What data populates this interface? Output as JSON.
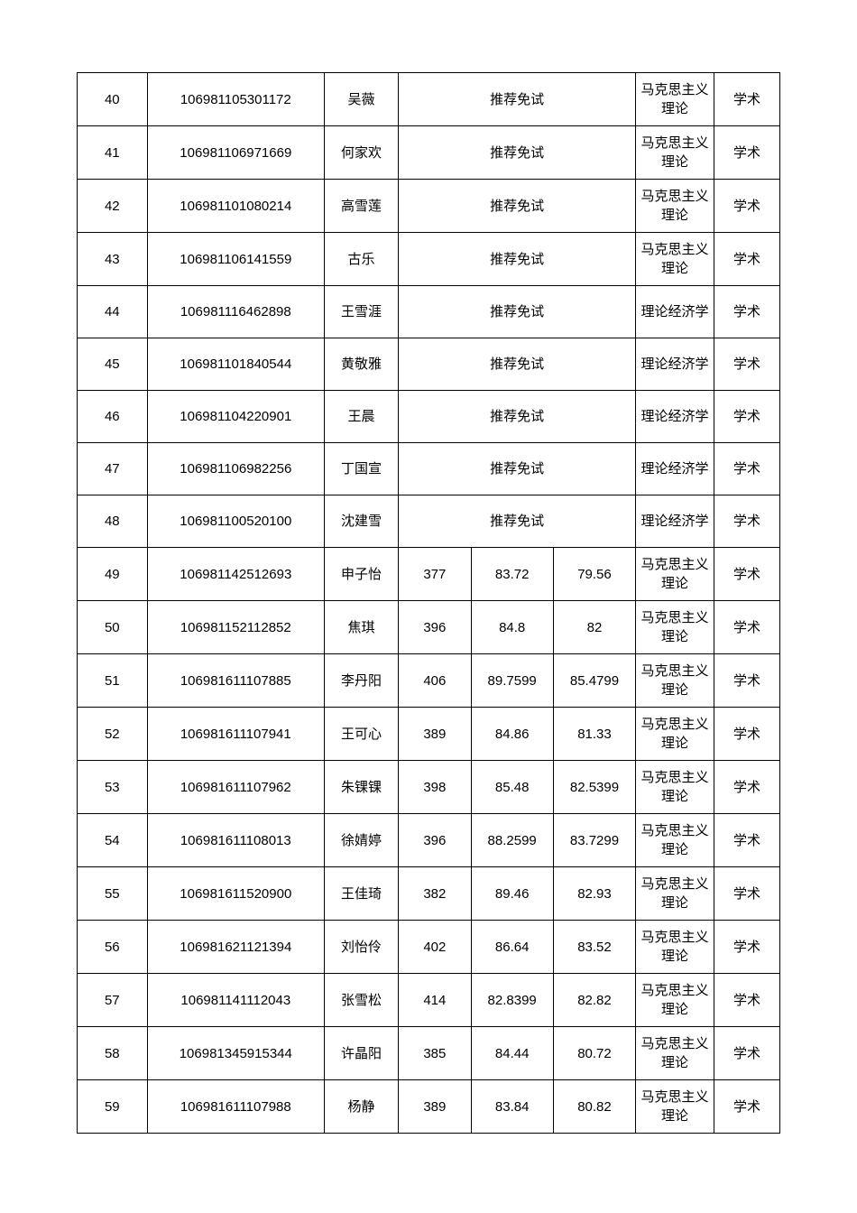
{
  "table": {
    "border_color": "#000000",
    "text_color": "#000000",
    "font_size": 15,
    "rows": [
      {
        "seq": "40",
        "id": "106981105301172",
        "name": "吴薇",
        "exemption": "推荐免试",
        "s1": "",
        "s2": "",
        "s3": "",
        "major": "马克思主义理论",
        "type": "学术",
        "merged": true
      },
      {
        "seq": "41",
        "id": "106981106971669",
        "name": "何家欢",
        "exemption": "推荐免试",
        "s1": "",
        "s2": "",
        "s3": "",
        "major": "马克思主义理论",
        "type": "学术",
        "merged": true
      },
      {
        "seq": "42",
        "id": "106981101080214",
        "name": "高雪莲",
        "exemption": "推荐免试",
        "s1": "",
        "s2": "",
        "s3": "",
        "major": "马克思主义理论",
        "type": "学术",
        "merged": true
      },
      {
        "seq": "43",
        "id": "106981106141559",
        "name": "古乐",
        "exemption": "推荐免试",
        "s1": "",
        "s2": "",
        "s3": "",
        "major": "马克思主义理论",
        "type": "学术",
        "merged": true
      },
      {
        "seq": "44",
        "id": "106981116462898",
        "name": "王雪涯",
        "exemption": "推荐免试",
        "s1": "",
        "s2": "",
        "s3": "",
        "major": "理论经济学",
        "type": "学术",
        "merged": true
      },
      {
        "seq": "45",
        "id": "106981101840544",
        "name": "黄敬雅",
        "exemption": "推荐免试",
        "s1": "",
        "s2": "",
        "s3": "",
        "major": "理论经济学",
        "type": "学术",
        "merged": true
      },
      {
        "seq": "46",
        "id": "106981104220901",
        "name": "王晨",
        "exemption": "推荐免试",
        "s1": "",
        "s2": "",
        "s3": "",
        "major": "理论经济学",
        "type": "学术",
        "merged": true
      },
      {
        "seq": "47",
        "id": "106981106982256",
        "name": "丁国宣",
        "exemption": "推荐免试",
        "s1": "",
        "s2": "",
        "s3": "",
        "major": "理论经济学",
        "type": "学术",
        "merged": true
      },
      {
        "seq": "48",
        "id": "106981100520100",
        "name": "沈建雪",
        "exemption": "推荐免试",
        "s1": "",
        "s2": "",
        "s3": "",
        "major": "理论经济学",
        "type": "学术",
        "merged": true
      },
      {
        "seq": "49",
        "id": "106981142512693",
        "name": "申子怡",
        "exemption": "",
        "s1": "377",
        "s2": "83.72",
        "s3": "79.56",
        "major": "马克思主义理论",
        "type": "学术",
        "merged": false
      },
      {
        "seq": "50",
        "id": "106981152112852",
        "name": "焦琪",
        "exemption": "",
        "s1": "396",
        "s2": "84.8",
        "s3": "82",
        "major": "马克思主义理论",
        "type": "学术",
        "merged": false
      },
      {
        "seq": "51",
        "id": "106981611107885",
        "name": "李丹阳",
        "exemption": "",
        "s1": "406",
        "s2": "89.7599",
        "s3": "85.4799",
        "major": "马克思主义理论",
        "type": "学术",
        "merged": false
      },
      {
        "seq": "52",
        "id": "106981611107941",
        "name": "王可心",
        "exemption": "",
        "s1": "389",
        "s2": "84.86",
        "s3": "81.33",
        "major": "马克思主义理论",
        "type": "学术",
        "merged": false
      },
      {
        "seq": "53",
        "id": "106981611107962",
        "name": "朱锞锞",
        "exemption": "",
        "s1": "398",
        "s2": "85.48",
        "s3": "82.5399",
        "major": "马克思主义理论",
        "type": "学术",
        "merged": false
      },
      {
        "seq": "54",
        "id": "106981611108013",
        "name": "徐婧婷",
        "exemption": "",
        "s1": "396",
        "s2": "88.2599",
        "s3": "83.7299",
        "major": "马克思主义理论",
        "type": "学术",
        "merged": false
      },
      {
        "seq": "55",
        "id": "106981611520900",
        "name": "王佳琦",
        "exemption": "",
        "s1": "382",
        "s2": "89.46",
        "s3": "82.93",
        "major": "马克思主义理论",
        "type": "学术",
        "merged": false
      },
      {
        "seq": "56",
        "id": "106981621121394",
        "name": "刘怡伶",
        "exemption": "",
        "s1": "402",
        "s2": "86.64",
        "s3": "83.52",
        "major": "马克思主义理论",
        "type": "学术",
        "merged": false
      },
      {
        "seq": "57",
        "id": "106981141112043",
        "name": "张雪松",
        "exemption": "",
        "s1": "414",
        "s2": "82.8399",
        "s3": "82.82",
        "major": "马克思主义理论",
        "type": "学术",
        "merged": false
      },
      {
        "seq": "58",
        "id": "106981345915344",
        "name": "许晶阳",
        "exemption": "",
        "s1": "385",
        "s2": "84.44",
        "s3": "80.72",
        "major": "马克思主义理论",
        "type": "学术",
        "merged": false
      },
      {
        "seq": "59",
        "id": "106981611107988",
        "name": "杨静",
        "exemption": "",
        "s1": "389",
        "s2": "83.84",
        "s3": "80.82",
        "major": "马克思主义理论",
        "type": "学术",
        "merged": false
      }
    ]
  }
}
